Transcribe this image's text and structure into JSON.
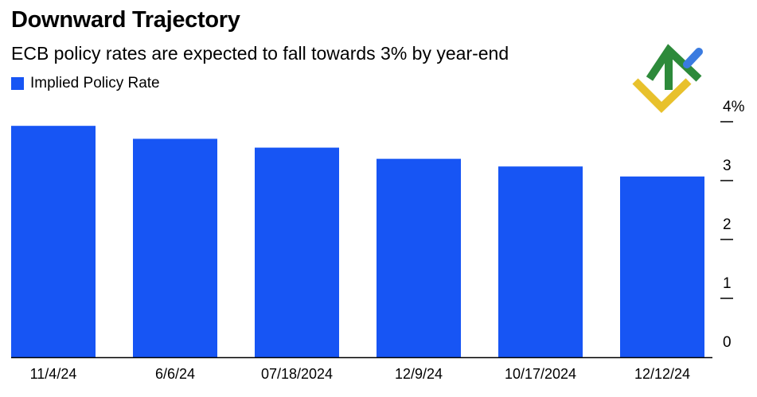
{
  "chart_data": {
    "type": "bar",
    "title": "Downward Trajectory",
    "subtitle": "ECB policy rates are expected to fall towards 3% by year-end",
    "legend": {
      "position": "top-left"
    },
    "series": [
      {
        "name": "Implied Policy Rate",
        "color": "#1755f4",
        "values": [
          3.93,
          3.71,
          3.56,
          3.37,
          3.24,
          3.07
        ]
      }
    ],
    "categories": [
      "11/4/24",
      "6/6/24",
      "07/18/2024",
      "12/9/24",
      "10/17/2024",
      "12/12/24"
    ],
    "ylim": [
      0,
      4
    ],
    "yticks": [
      0,
      1,
      2,
      3,
      4
    ],
    "ytick_labels": [
      "0",
      "1",
      "2",
      "3",
      "4%"
    ],
    "y_axis_side": "right",
    "grid": false,
    "xlabel": "",
    "ylabel": ""
  },
  "colors": {
    "bar": "#1755f4",
    "text": "#000000",
    "axis": "#000000",
    "logo_green": "#2d8a3a",
    "logo_yellow": "#e8c12c",
    "logo_blue": "#3a7be0"
  },
  "logo": {
    "icon": "brand-logo-icon"
  }
}
